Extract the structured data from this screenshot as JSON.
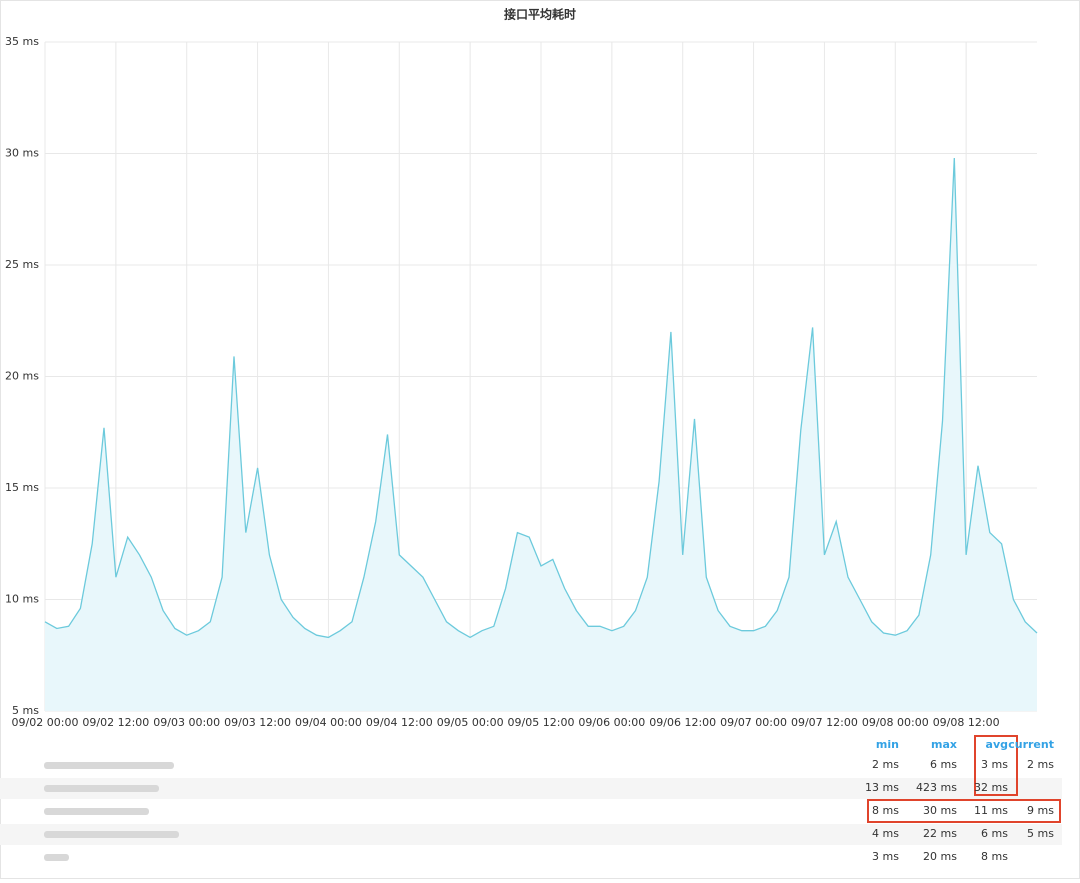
{
  "chart_data": {
    "type": "line",
    "title": "接口平均耗时",
    "color": "#6ccadc",
    "fill": "#e8f7fb",
    "grid": true,
    "x": [
      "09/02 00:00",
      "09/02 02:00",
      "09/02 04:00",
      "09/02 06:00",
      "09/02 08:00",
      "09/02 10:00",
      "09/02 12:00",
      "09/02 14:00",
      "09/02 16:00",
      "09/02 18:00",
      "09/02 20:00",
      "09/02 22:00",
      "09/03 00:00",
      "09/03 02:00",
      "09/03 04:00",
      "09/03 06:00",
      "09/03 08:00",
      "09/03 10:00",
      "09/03 12:00",
      "09/03 14:00",
      "09/03 16:00",
      "09/03 18:00",
      "09/03 20:00",
      "09/03 22:00",
      "09/04 00:00",
      "09/04 02:00",
      "09/04 04:00",
      "09/04 06:00",
      "09/04 08:00",
      "09/04 10:00",
      "09/04 12:00",
      "09/04 14:00",
      "09/04 16:00",
      "09/04 18:00",
      "09/04 20:00",
      "09/04 22:00",
      "09/05 00:00",
      "09/05 02:00",
      "09/05 04:00",
      "09/05 06:00",
      "09/05 08:00",
      "09/05 10:00",
      "09/05 12:00",
      "09/05 14:00",
      "09/05 16:00",
      "09/05 18:00",
      "09/05 20:00",
      "09/05 22:00",
      "09/06 00:00",
      "09/06 02:00",
      "09/06 04:00",
      "09/06 06:00",
      "09/06 08:00",
      "09/06 10:00",
      "09/06 12:00",
      "09/06 14:00",
      "09/06 16:00",
      "09/06 18:00",
      "09/06 20:00",
      "09/06 22:00",
      "09/07 00:00",
      "09/07 02:00",
      "09/07 04:00",
      "09/07 06:00",
      "09/07 08:00",
      "09/07 10:00",
      "09/07 12:00",
      "09/07 14:00",
      "09/07 16:00",
      "09/07 18:00",
      "09/07 20:00",
      "09/07 22:00",
      "09/08 00:00",
      "09/08 02:00",
      "09/08 04:00",
      "09/08 06:00",
      "09/08 08:00",
      "09/08 10:00",
      "09/08 12:00",
      "09/08 14:00",
      "09/08 16:00",
      "09/08 18:00",
      "09/08 20:00",
      "09/08 22:00",
      "09/09 00:00"
    ],
    "values": [
      9,
      8.7,
      8.8,
      9.6,
      12.5,
      17.7,
      11,
      12.8,
      12,
      11,
      9.5,
      8.7,
      8.4,
      8.6,
      9,
      11,
      20.9,
      13,
      15.9,
      12,
      10,
      9.2,
      8.7,
      8.4,
      8.3,
      8.6,
      9,
      11,
      13.5,
      17.4,
      12,
      11.5,
      11,
      10,
      9,
      8.6,
      8.3,
      8.6,
      8.8,
      10.5,
      13,
      12.8,
      11.5,
      11.8,
      10.5,
      9.5,
      8.8,
      8.8,
      8.6,
      8.8,
      9.5,
      11,
      15.3,
      22,
      12,
      18.1,
      11,
      9.5,
      8.8,
      8.6,
      8.6,
      8.8,
      9.5,
      11,
      17.6,
      22.2,
      12,
      13.5,
      11,
      10,
      9,
      8.5,
      8.4,
      8.6,
      9.3,
      12,
      18,
      29.8,
      12,
      16,
      13,
      12.5,
      10,
      9,
      8.5
    ],
    "ylim": [
      5,
      35
    ],
    "yticks": [
      {
        "value": 5,
        "label": "5 ms"
      },
      {
        "value": 10,
        "label": "10 ms"
      },
      {
        "value": 15,
        "label": "15 ms"
      },
      {
        "value": 20,
        "label": "20 ms"
      },
      {
        "value": 25,
        "label": "25 ms"
      },
      {
        "value": 30,
        "label": "30 ms"
      },
      {
        "value": 35,
        "label": "35 ms"
      }
    ],
    "xticks": [
      "09/02 00:00",
      "09/02 12:00",
      "09/03 00:00",
      "09/03 12:00",
      "09/04 00:00",
      "09/04 12:00",
      "09/05 00:00",
      "09/05 12:00",
      "09/06 00:00",
      "09/06 12:00",
      "09/07 00:00",
      "09/07 12:00",
      "09/08 00:00",
      "09/08 12:00"
    ]
  },
  "table": {
    "columns": [
      "min",
      "max",
      "avg",
      "current"
    ],
    "rows": [
      [
        "2 ms",
        "6 ms",
        "3 ms",
        "2 ms"
      ],
      [
        "13 ms",
        "423 ms",
        "32 ms",
        null
      ],
      [
        "8 ms",
        "30 ms",
        "11 ms",
        "9 ms"
      ],
      [
        "4 ms",
        "22 ms",
        "6 ms",
        "5 ms"
      ],
      [
        "3 ms",
        "20 ms",
        "8 ms",
        null
      ]
    ]
  }
}
